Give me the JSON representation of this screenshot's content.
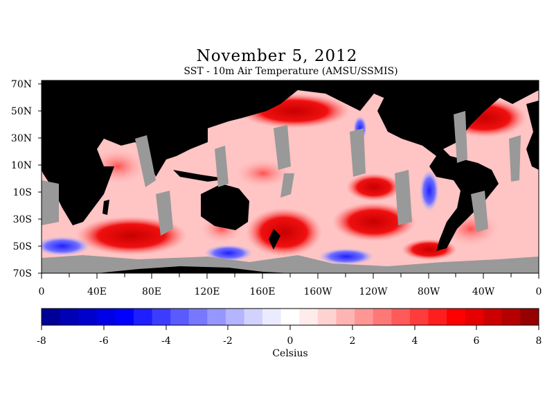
{
  "title": "November 5, 2012",
  "subtitle": "SST - 10m Air Temperature (AMSU/SSMIS)",
  "map": {
    "lat_labels": [
      "70N",
      "50N",
      "30N",
      "10N",
      "10S",
      "30S",
      "50S",
      "70S"
    ],
    "lon_labels": [
      "0",
      "40E",
      "80E",
      "120E",
      "160E",
      "160W",
      "120W",
      "80W",
      "40W",
      "0"
    ],
    "lon_range": [
      0,
      360
    ],
    "lat_range": [
      -72,
      72
    ],
    "colors": {
      "land": "#000000",
      "no_data": "#999999",
      "warm": "#e60000",
      "cool": "#0000e6"
    }
  },
  "colorbar": {
    "tick_labels": [
      "-8",
      "-6",
      "-4",
      "-2",
      "0",
      "2",
      "4",
      "6",
      "8"
    ],
    "unit_label": "Celsius",
    "range": [
      -8,
      8
    ],
    "colors": [
      "#000096",
      "#0000b4",
      "#0000cd",
      "#0000e6",
      "#0000ff",
      "#1e1eff",
      "#3c3cff",
      "#5a5aff",
      "#7878ff",
      "#9696ff",
      "#b4b4ff",
      "#d2d2ff",
      "#ebebff",
      "#ffffff",
      "#ffebeb",
      "#ffd2d2",
      "#ffb4b4",
      "#ff9696",
      "#ff7878",
      "#ff5a5a",
      "#ff3c3c",
      "#ff1e1e",
      "#ff0000",
      "#e60000",
      "#cd0000",
      "#b40000",
      "#960000"
    ]
  }
}
